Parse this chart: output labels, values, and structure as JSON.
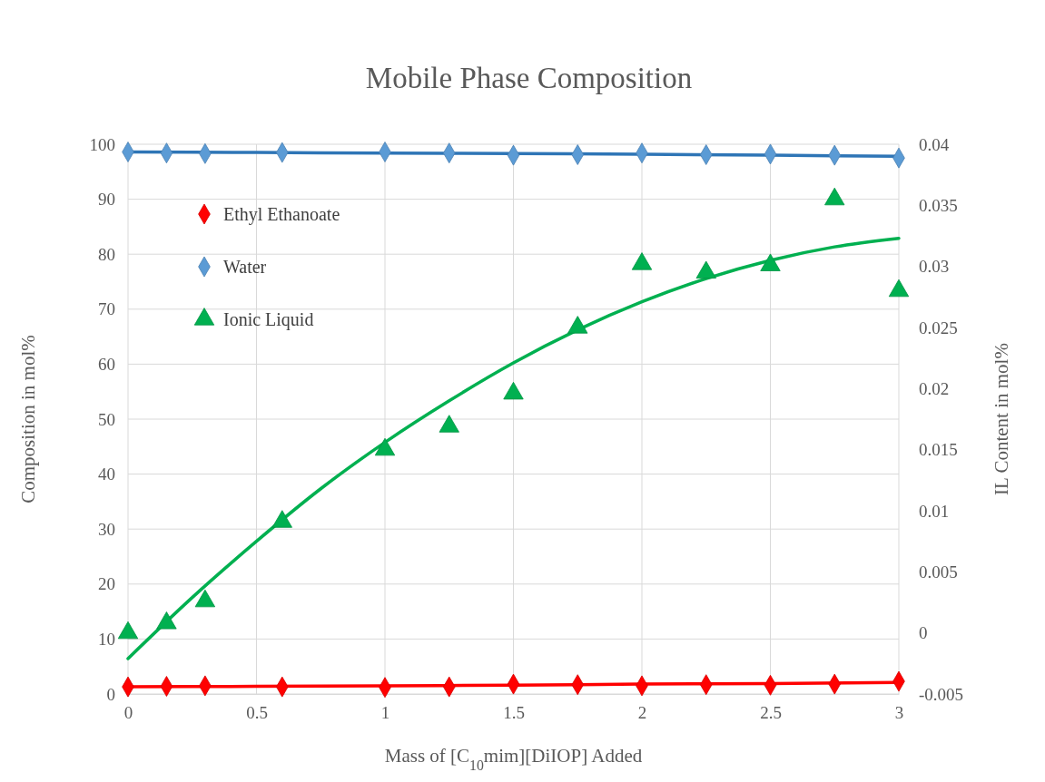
{
  "chart_data": {
    "type": "scatter",
    "title": "Mobile Phase Composition",
    "xlabel": "Mass of [C$_{10}$mim][DiIOP] Added",
    "ylabel": "Composition in mol%",
    "y2label": "IL Content in mol%",
    "xlim": [
      0,
      3
    ],
    "xticks": [
      0,
      0.5,
      1,
      1.5,
      2,
      2.5,
      3
    ],
    "ylim": [
      0,
      100
    ],
    "yticks": [
      0,
      10,
      20,
      30,
      40,
      50,
      60,
      70,
      80,
      90,
      100
    ],
    "y2lim": [
      -0.005,
      0.04
    ],
    "y2ticks": [
      -0.005,
      0,
      0.005,
      0.01,
      0.015,
      0.02,
      0.025,
      0.03,
      0.035,
      0.04
    ],
    "grid": true,
    "legend": "top left",
    "series": [
      {
        "name": "Ethyl Ethanoate",
        "type": "scatter",
        "marker": "diamond",
        "color": "#ff0000",
        "x": [
          0,
          0.15,
          0.3,
          0.6,
          1,
          1.25,
          1.5,
          1.75,
          2,
          2.25,
          2.5,
          2.75,
          3
        ],
        "values": [
          1.3,
          1.4,
          1.5,
          1.3,
          1.2,
          1.3,
          1.8,
          1.7,
          1.5,
          1.7,
          1.6,
          1.8,
          2.3
        ]
      },
      {
        "name": "Water",
        "type": "scatter",
        "marker": "diamond",
        "color": "#5b9bd5",
        "x": [
          0,
          0.15,
          0.3,
          0.6,
          1,
          1.25,
          1.5,
          1.75,
          2,
          2.25,
          2.5,
          2.75,
          3
        ],
        "values": [
          98.6,
          98.4,
          98.3,
          98.5,
          98.6,
          98.4,
          98.0,
          98.1,
          98.4,
          98.1,
          98.2,
          98.0,
          97.5
        ]
      },
      {
        "name": "Ionic Liquid",
        "type": "scatter",
        "marker": "triangle",
        "axis": "y2",
        "color": "#00b050",
        "x": [
          0,
          0.15,
          0.3,
          0.6,
          1,
          1.25,
          1.5,
          1.75,
          2,
          2.25,
          2.5,
          2.75,
          3
        ],
        "values": [
          0.0,
          0.0008,
          0.0026,
          0.0091,
          0.015,
          0.0169,
          0.0196,
          0.025,
          0.0302,
          0.0295,
          0.0301,
          0.0355,
          0.028
        ]
      },
      {
        "type": "line",
        "marker": "none",
        "color": "#ff0000",
        "x": [
          0,
          0.5,
          1,
          1.5,
          2,
          2.5,
          3
        ],
        "values": [
          1.3,
          1.4,
          1.5,
          1.6,
          1.8,
          1.9,
          2.1
        ]
      },
      {
        "type": "line",
        "marker": "none",
        "color": "#2e75b6",
        "x": [
          0,
          0.5,
          1,
          1.5,
          2,
          2.5,
          3
        ],
        "values": [
          98.6,
          98.5,
          98.4,
          98.3,
          98.2,
          98.0,
          97.8
        ]
      },
      {
        "type": "line",
        "marker": "none",
        "axis": "y2",
        "color": "#00b050",
        "x": [
          0,
          0.25,
          0.5,
          0.75,
          1,
          1.25,
          1.5,
          1.75,
          2,
          2.25,
          2.5,
          2.75,
          3
        ],
        "values": [
          -0.0021,
          0.0029,
          0.0075,
          0.0118,
          0.0156,
          0.019,
          0.0221,
          0.0248,
          0.0271,
          0.029,
          0.0305,
          0.0316,
          0.0323
        ]
      }
    ]
  }
}
